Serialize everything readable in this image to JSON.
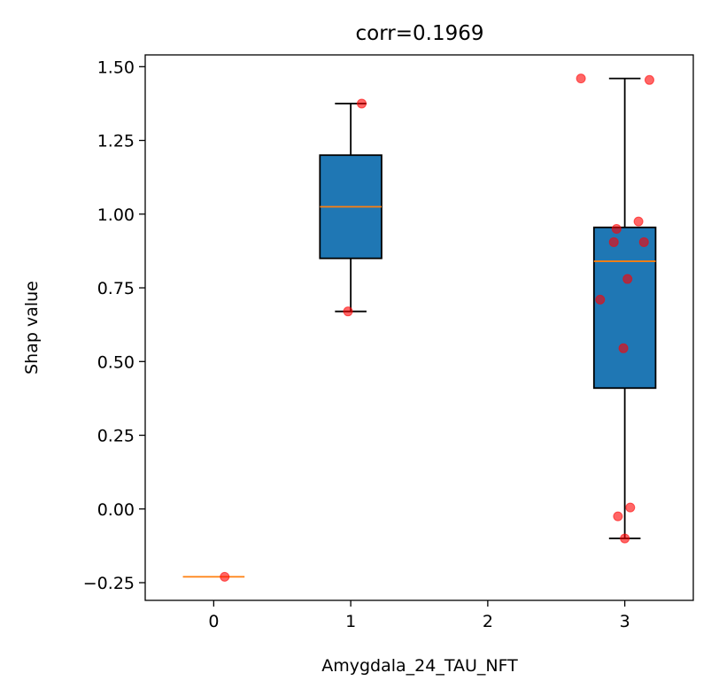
{
  "chart_data": {
    "type": "box",
    "title": "corr=0.1969",
    "xlabel": "Amygdala_24_TAU_NFT",
    "ylabel": "Shap value",
    "categories": [
      "0",
      "1",
      "2",
      "3"
    ],
    "xlim": [
      -0.5,
      3.5
    ],
    "ylim": [
      -0.31,
      1.54
    ],
    "yticks": [
      -0.25,
      0.0,
      0.25,
      0.5,
      0.75,
      1.0,
      1.25,
      1.5
    ],
    "ytick_labels": [
      "−0.25",
      "0.00",
      "0.25",
      "0.50",
      "0.75",
      "1.00",
      "1.25",
      "1.50"
    ],
    "grid": false,
    "boxes": [
      {
        "x": 0,
        "whisker_low": -0.23,
        "q1": -0.23,
        "median": -0.23,
        "q3": -0.23,
        "whisker_high": -0.23
      },
      {
        "x": 1,
        "whisker_low": 0.67,
        "q1": 0.85,
        "median": 1.025,
        "q3": 1.2,
        "whisker_high": 1.375
      },
      {
        "x": 3,
        "whisker_low": -0.1,
        "q1": 0.41,
        "median": 0.84,
        "q3": 0.955,
        "whisker_high": 1.46
      }
    ],
    "points": [
      {
        "x": 0.08,
        "y": -0.23
      },
      {
        "x": 0.98,
        "y": 0.67
      },
      {
        "x": 1.08,
        "y": 1.375
      },
      {
        "x": 2.68,
        "y": 1.46
      },
      {
        "x": 3.18,
        "y": 1.455
      },
      {
        "x": 3.1,
        "y": 0.975
      },
      {
        "x": 2.94,
        "y": 0.95
      },
      {
        "x": 2.92,
        "y": 0.905
      },
      {
        "x": 3.14,
        "y": 0.905
      },
      {
        "x": 3.02,
        "y": 0.78
      },
      {
        "x": 2.82,
        "y": 0.71
      },
      {
        "x": 2.99,
        "y": 0.545
      },
      {
        "x": 3.04,
        "y": 0.005
      },
      {
        "x": 2.95,
        "y": -0.025
      },
      {
        "x": 3.0,
        "y": -0.1
      }
    ],
    "colors": {
      "box_fill": "#1f77b4",
      "median": "#ff7f0e",
      "points": "#ff0000",
      "axes": "#000000"
    }
  }
}
